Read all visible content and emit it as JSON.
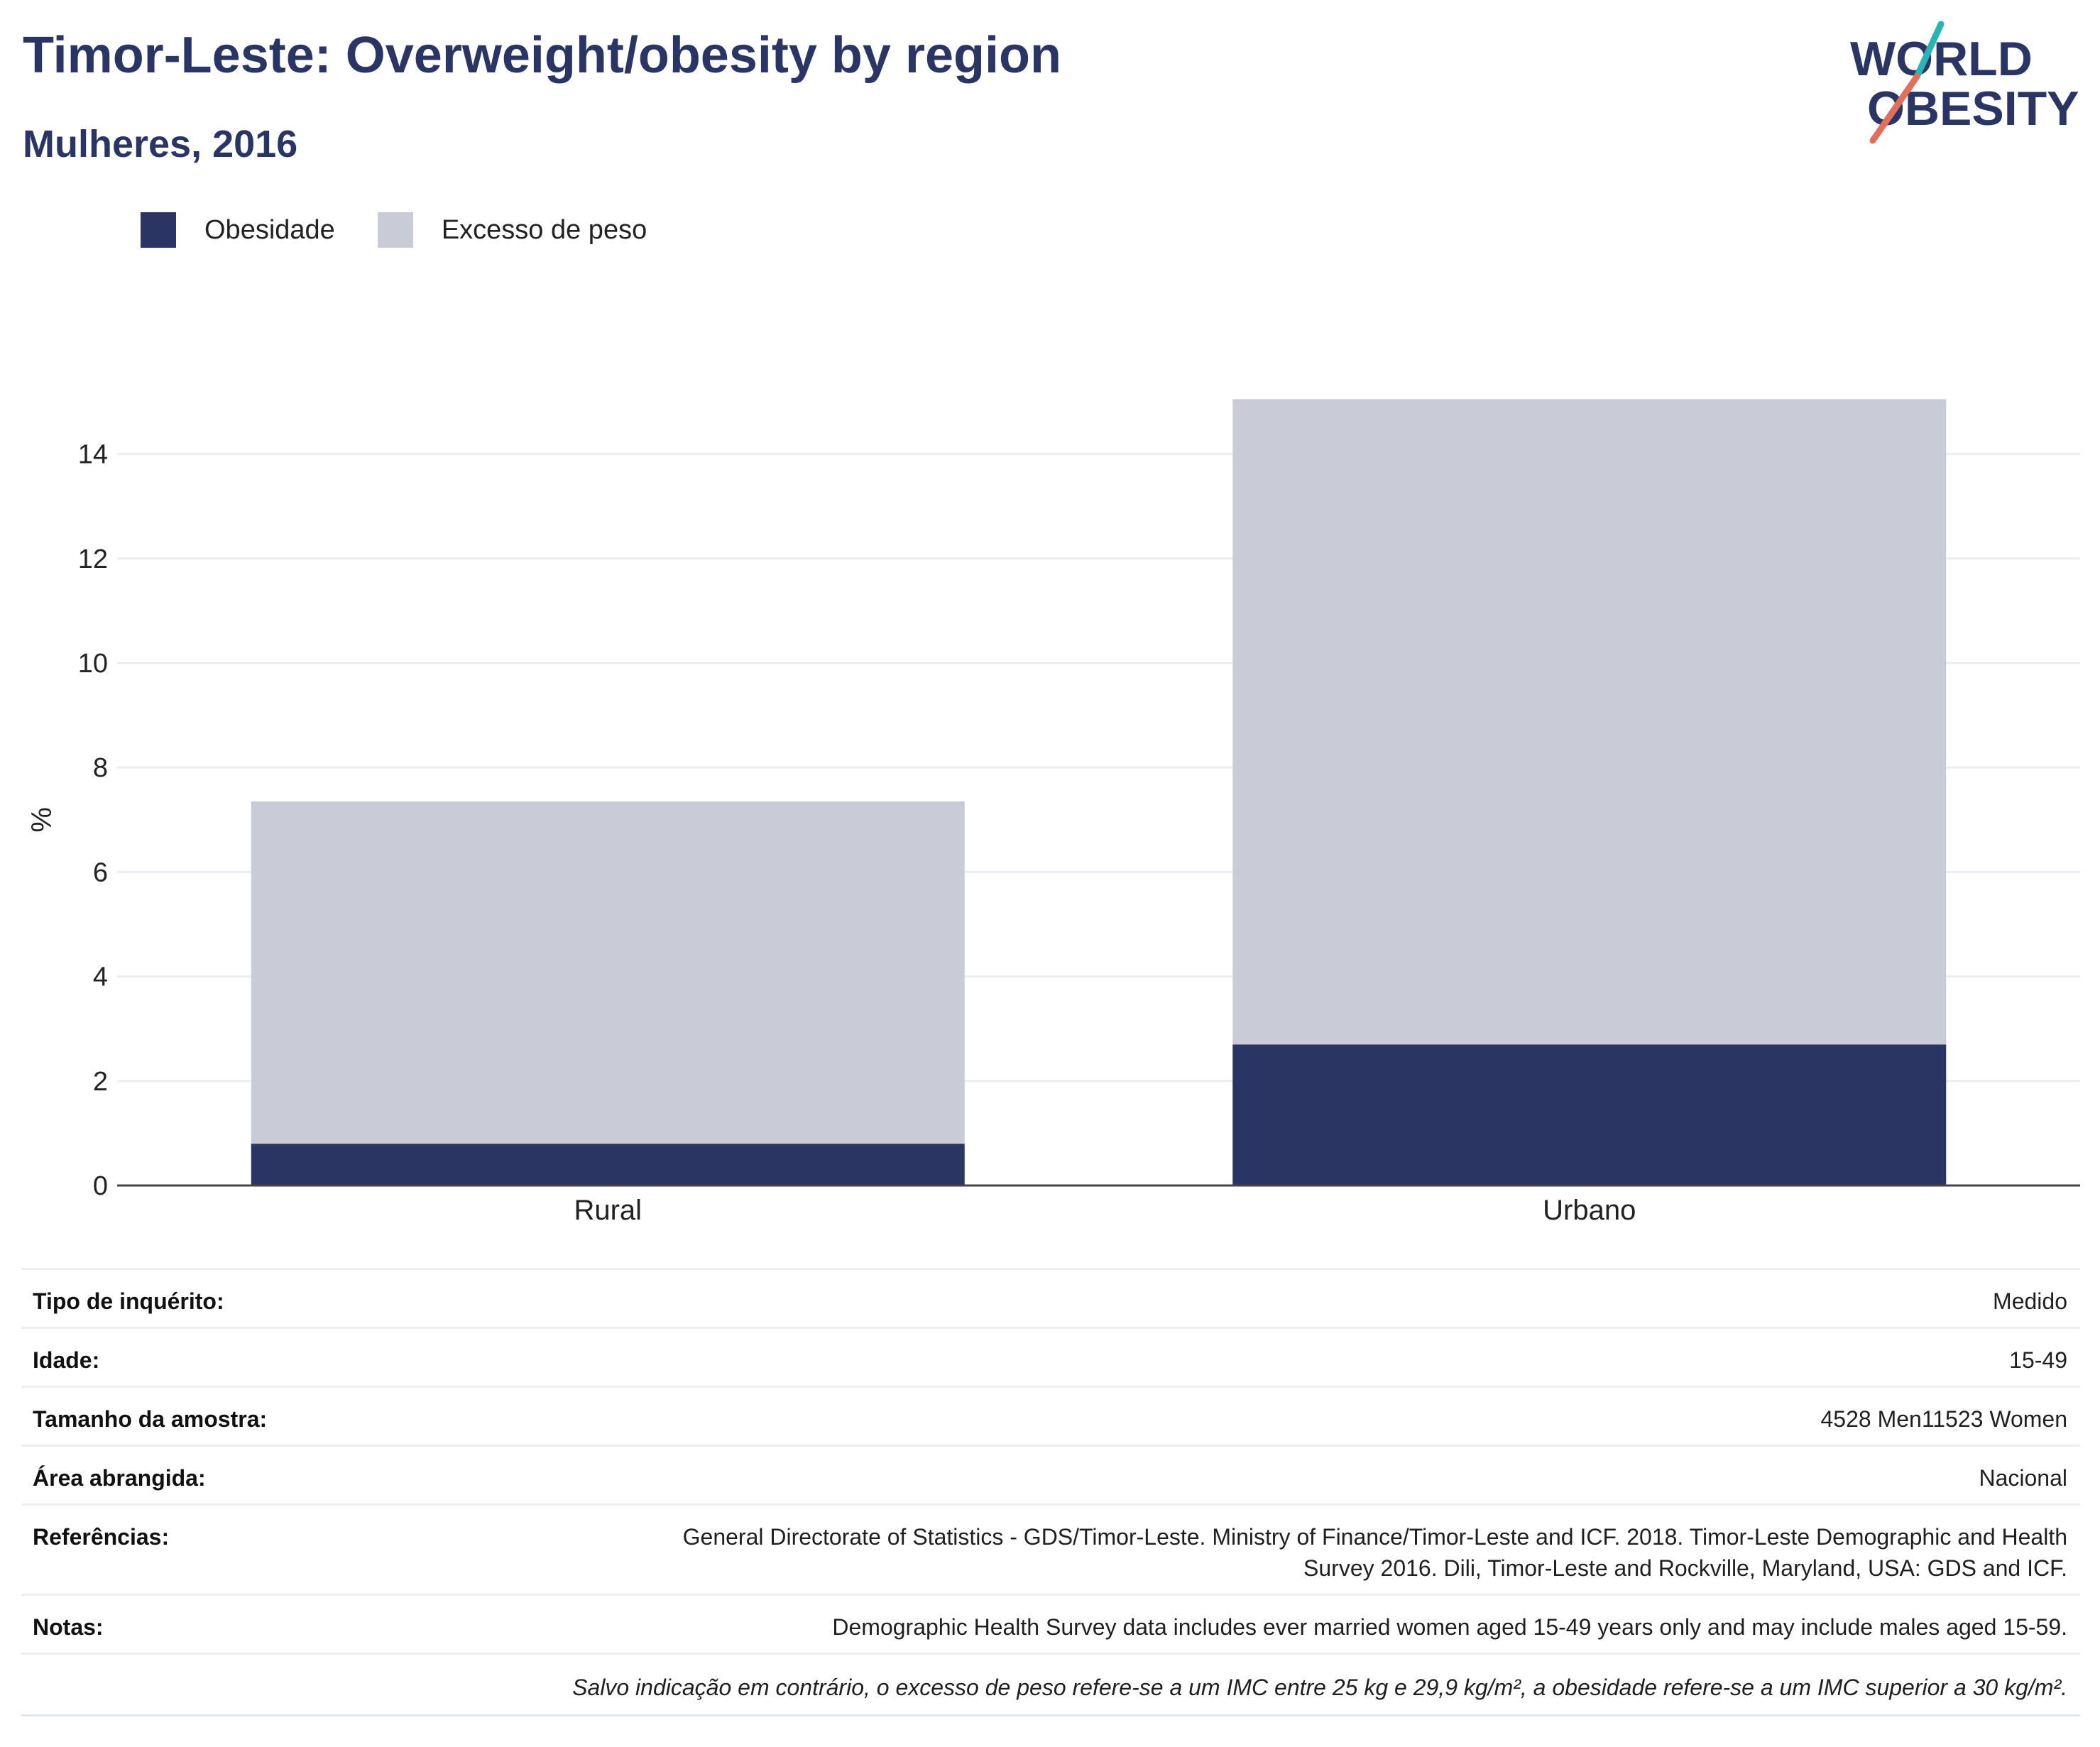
{
  "header": {
    "title": "Timor-Leste: Overweight/obesity by region",
    "subtitle": "Mulheres, 2016"
  },
  "logo": {
    "line1": "WORLD",
    "line2": "OBESITY",
    "colors": {
      "navy": "#2a3563",
      "teal": "#2bb3b8",
      "coral": "#e0705e"
    }
  },
  "legend": [
    {
      "label": "Obesidade",
      "color": "#2a3563"
    },
    {
      "label": "Excesso de peso",
      "color": "#c9cbd7"
    }
  ],
  "chart_data": {
    "type": "bar",
    "stacked": true,
    "categories": [
      "Rural",
      "Urbano"
    ],
    "series": [
      {
        "name": "Obesidade",
        "color": "#2a3563",
        "values": [
          0.8,
          2.7
        ]
      },
      {
        "name": "Excesso de peso",
        "color": "#c9cbd7",
        "values": [
          6.55,
          12.35
        ]
      }
    ],
    "ylabel": "%",
    "xlabel": "",
    "ylim": [
      0,
      15.8
    ],
    "yticks": [
      0,
      2,
      4,
      6,
      8,
      10,
      12,
      14
    ],
    "grid": true,
    "legend_position": "top-left"
  },
  "info": {
    "rows": [
      {
        "key": "Tipo de inquérito:",
        "value": "Medido"
      },
      {
        "key": "Idade:",
        "value": "15-49"
      },
      {
        "key": "Tamanho da amostra:",
        "value": "4528 Men11523 Women"
      },
      {
        "key": "Área abrangida:",
        "value": "Nacional"
      },
      {
        "key": "Referências:",
        "value": "General Directorate of Statistics - GDS/Timor-Leste. Ministry of Finance/Timor-Leste and ICF. 2018. Timor-Leste Demographic and Health Survey 2016. Dili, Timor-Leste and Rockville, Maryland, USA: GDS and ICF."
      },
      {
        "key": "Notas:",
        "value": "Demographic Health Survey data includes ever married women aged 15-49 years only and may include males aged 15-59."
      }
    ],
    "footnote": "Salvo indicação em contrário, o excesso de peso refere-se a um IMC entre 25 kg e 29,9 kg/m², a obesidade refere-se a um IMC superior a 30 kg/m²."
  }
}
